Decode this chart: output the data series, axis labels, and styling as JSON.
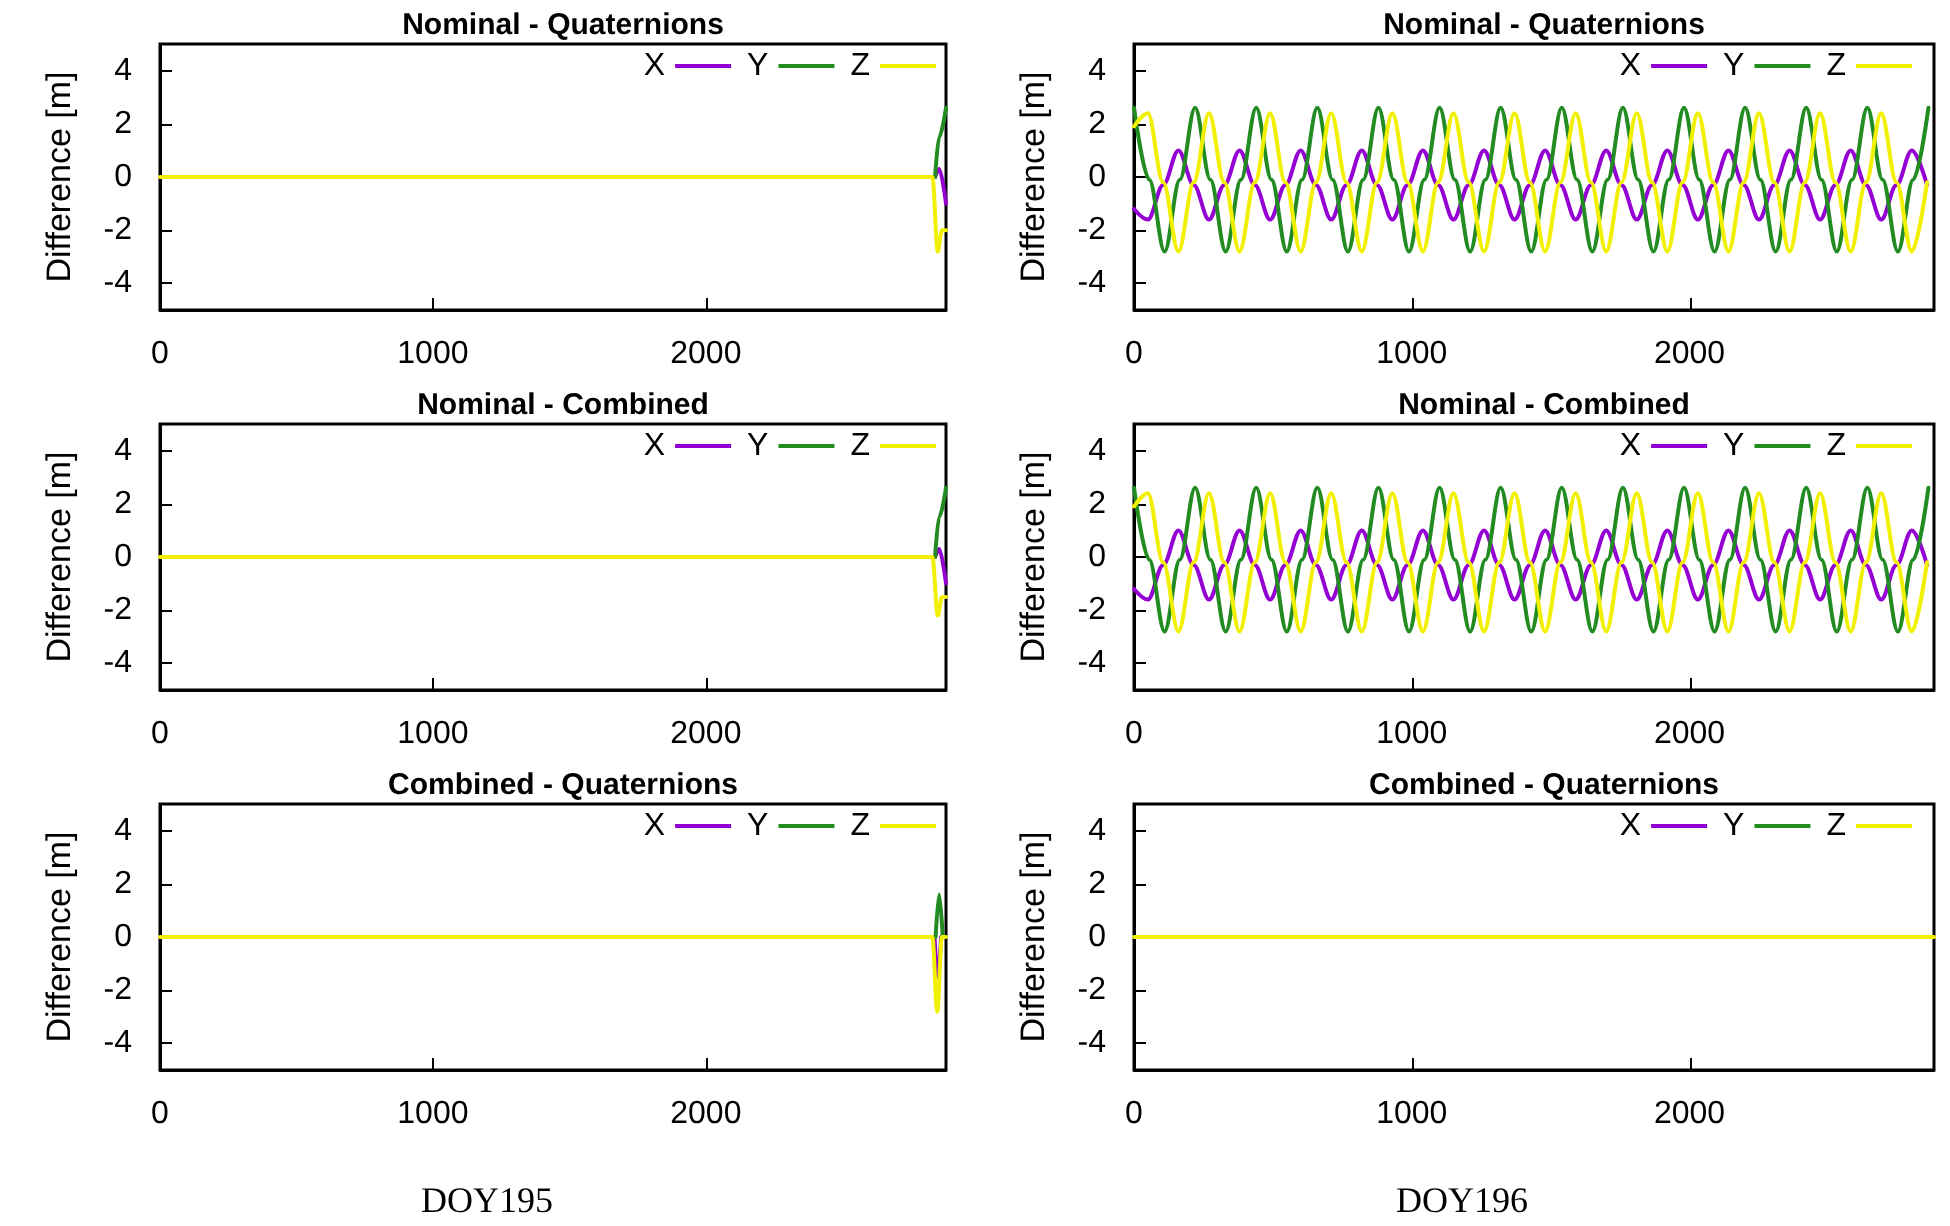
{
  "chart_data": [
    {
      "type": "line",
      "title": "Nominal - Quaternions",
      "ylabel": "Difference [m]",
      "xlim": [
        0,
        2880
      ],
      "xticks": [
        0,
        1000,
        2000
      ],
      "ylim": [
        -5,
        5
      ],
      "yticks": [
        -4,
        -2,
        0,
        2,
        4
      ],
      "grid": false,
      "legend": "top right",
      "marker": "none",
      "line_style": "solid",
      "series": [
        {
          "name": "X",
          "color": "#9400d3",
          "x": [
            2840,
            2855,
            2880
          ],
          "values": [
            0,
            0.3,
            -1.0
          ]
        },
        {
          "name": "Y",
          "color": "#228b22",
          "x": [
            2840,
            2855,
            2880
          ],
          "values": [
            0,
            1.5,
            2.6
          ]
        },
        {
          "name": "Z",
          "color": "#f0f000",
          "x": [
            0,
            2830,
            2850,
            2865,
            2880
          ],
          "values": [
            0,
            0,
            -2.8,
            -2.0,
            -2.0
          ]
        }
      ]
    },
    {
      "type": "line",
      "title": "Nominal - Quaternions",
      "ylabel": "Difference [m]",
      "xlim": [
        0,
        2880
      ],
      "xticks": [
        0,
        1000,
        2000
      ],
      "ylim": [
        -5,
        5
      ],
      "yticks": [
        -4,
        -2,
        0,
        2,
        4
      ],
      "grid": false,
      "legend": "top right",
      "marker": "none",
      "line_style": "solid",
      "series": [
        {
          "name": "X",
          "color": "#9400d3",
          "x": [
            0,
            50,
            105,
            160,
            215,
            270,
            325,
            380,
            435,
            490,
            545,
            600,
            655,
            710,
            765,
            820,
            875,
            930,
            985,
            1040,
            1095,
            1150,
            1205,
            1260,
            1315,
            1370,
            1425,
            1480,
            1535,
            1590,
            1645,
            1700,
            1755,
            1810,
            1865,
            1920,
            1975,
            2030,
            2085,
            2140,
            2195,
            2250,
            2305,
            2360,
            2415,
            2470,
            2525,
            2580,
            2635,
            2690,
            2745,
            2800,
            2855
          ],
          "values": [
            -1.2,
            -1.6,
            -0.3,
            1.0,
            -0.3,
            -1.6,
            -0.3,
            1.0,
            -0.3,
            -1.6,
            -0.3,
            1.0,
            -0.3,
            -1.6,
            -0.3,
            1.0,
            -0.3,
            -1.6,
            -0.3,
            1.0,
            -0.3,
            -1.6,
            -0.3,
            1.0,
            -0.3,
            -1.6,
            -0.3,
            1.0,
            -0.3,
            -1.6,
            -0.3,
            1.0,
            -0.3,
            -1.6,
            -0.3,
            1.0,
            -0.3,
            -1.6,
            -0.3,
            1.0,
            -0.3,
            -1.6,
            -0.3,
            1.0,
            -0.3,
            -1.6,
            -0.3,
            1.0,
            -0.3,
            -1.6,
            -0.3,
            1.0,
            -0.3
          ]
        },
        {
          "name": "Y",
          "color": "#228b22",
          "x": [
            0,
            55,
            110,
            165,
            220,
            275,
            330,
            385,
            440,
            495,
            550,
            605,
            660,
            715,
            770,
            825,
            880,
            935,
            990,
            1045,
            1100,
            1155,
            1210,
            1265,
            1320,
            1375,
            1430,
            1485,
            1540,
            1595,
            1650,
            1705,
            1760,
            1815,
            1870,
            1925,
            1980,
            2035,
            2090,
            2145,
            2200,
            2255,
            2310,
            2365,
            2420,
            2475,
            2530,
            2585,
            2640,
            2695,
            2750,
            2805,
            2860
          ],
          "values": [
            2.6,
            -0.1,
            -2.8,
            -0.1,
            2.6,
            -0.1,
            -2.8,
            -0.1,
            2.6,
            -0.1,
            -2.8,
            -0.1,
            2.6,
            -0.1,
            -2.8,
            -0.1,
            2.6,
            -0.1,
            -2.8,
            -0.1,
            2.6,
            -0.1,
            -2.8,
            -0.1,
            2.6,
            -0.1,
            -2.8,
            -0.1,
            2.6,
            -0.1,
            -2.8,
            -0.1,
            2.6,
            -0.1,
            -2.8,
            -0.1,
            2.6,
            -0.1,
            -2.8,
            -0.1,
            2.6,
            -0.1,
            -2.8,
            -0.1,
            2.6,
            -0.1,
            -2.8,
            -0.1,
            2.6,
            -0.1,
            -2.8,
            -0.1,
            2.6
          ]
        },
        {
          "name": "Z",
          "color": "#f0f000",
          "x": [
            0,
            50,
            105,
            160,
            215,
            270,
            325,
            380,
            435,
            490,
            545,
            600,
            655,
            710,
            765,
            820,
            875,
            930,
            985,
            1040,
            1095,
            1150,
            1205,
            1260,
            1315,
            1370,
            1425,
            1480,
            1535,
            1590,
            1645,
            1700,
            1755,
            1810,
            1865,
            1920,
            1975,
            2030,
            2085,
            2140,
            2195,
            2250,
            2305,
            2360,
            2415,
            2470,
            2525,
            2580,
            2635,
            2690,
            2745,
            2800,
            2855
          ],
          "values": [
            1.9,
            2.4,
            -0.2,
            -2.8,
            -0.2,
            2.4,
            -0.2,
            -2.8,
            -0.2,
            2.4,
            -0.2,
            -2.8,
            -0.2,
            2.4,
            -0.2,
            -2.8,
            -0.2,
            2.4,
            -0.2,
            -2.8,
            -0.2,
            2.4,
            -0.2,
            -2.8,
            -0.2,
            2.4,
            -0.2,
            -2.8,
            -0.2,
            2.4,
            -0.2,
            -2.8,
            -0.2,
            2.4,
            -0.2,
            -2.8,
            -0.2,
            2.4,
            -0.2,
            -2.8,
            -0.2,
            2.4,
            -0.2,
            -2.8,
            -0.2,
            2.4,
            -0.2,
            -2.8,
            -0.2,
            2.4,
            -0.2,
            -2.8,
            -0.2
          ]
        }
      ]
    },
    {
      "type": "line",
      "title": "Nominal - Combined",
      "ylabel": "Difference [m]",
      "xlim": [
        0,
        2880
      ],
      "xticks": [
        0,
        1000,
        2000
      ],
      "ylim": [
        -5,
        5
      ],
      "yticks": [
        -4,
        -2,
        0,
        2,
        4
      ],
      "grid": false,
      "legend": "top right",
      "marker": "none",
      "line_style": "solid",
      "series": [
        {
          "name": "X",
          "color": "#9400d3",
          "x": [
            2840,
            2855,
            2880
          ],
          "values": [
            0,
            0.3,
            -1.0
          ]
        },
        {
          "name": "Y",
          "color": "#228b22",
          "x": [
            2840,
            2855,
            2880
          ],
          "values": [
            0,
            1.5,
            2.6
          ]
        },
        {
          "name": "Z",
          "color": "#f0f000",
          "x": [
            0,
            2830,
            2850,
            2865,
            2880
          ],
          "values": [
            0,
            0,
            -2.2,
            -1.5,
            -1.5
          ]
        }
      ]
    },
    {
      "type": "line",
      "title": "Nominal - Combined",
      "ylabel": "Difference [m]",
      "xlim": [
        0,
        2880
      ],
      "xticks": [
        0,
        1000,
        2000
      ],
      "ylim": [
        -5,
        5
      ],
      "yticks": [
        -4,
        -2,
        0,
        2,
        4
      ],
      "grid": false,
      "legend": "top right",
      "marker": "none",
      "line_style": "solid",
      "series": [
        {
          "name": "X",
          "color": "#9400d3",
          "x": [
            0,
            50,
            105,
            160,
            215,
            270,
            325,
            380,
            435,
            490,
            545,
            600,
            655,
            710,
            765,
            820,
            875,
            930,
            985,
            1040,
            1095,
            1150,
            1205,
            1260,
            1315,
            1370,
            1425,
            1480,
            1535,
            1590,
            1645,
            1700,
            1755,
            1810,
            1865,
            1920,
            1975,
            2030,
            2085,
            2140,
            2195,
            2250,
            2305,
            2360,
            2415,
            2470,
            2525,
            2580,
            2635,
            2690,
            2745,
            2800,
            2855
          ],
          "values": [
            -1.2,
            -1.6,
            -0.3,
            1.0,
            -0.3,
            -1.6,
            -0.3,
            1.0,
            -0.3,
            -1.6,
            -0.3,
            1.0,
            -0.3,
            -1.6,
            -0.3,
            1.0,
            -0.3,
            -1.6,
            -0.3,
            1.0,
            -0.3,
            -1.6,
            -0.3,
            1.0,
            -0.3,
            -1.6,
            -0.3,
            1.0,
            -0.3,
            -1.6,
            -0.3,
            1.0,
            -0.3,
            -1.6,
            -0.3,
            1.0,
            -0.3,
            -1.6,
            -0.3,
            1.0,
            -0.3,
            -1.6,
            -0.3,
            1.0,
            -0.3,
            -1.6,
            -0.3,
            1.0,
            -0.3,
            -1.6,
            -0.3,
            1.0,
            -0.3
          ]
        },
        {
          "name": "Y",
          "color": "#228b22",
          "x": [
            0,
            55,
            110,
            165,
            220,
            275,
            330,
            385,
            440,
            495,
            550,
            605,
            660,
            715,
            770,
            825,
            880,
            935,
            990,
            1045,
            1100,
            1155,
            1210,
            1265,
            1320,
            1375,
            1430,
            1485,
            1540,
            1595,
            1650,
            1705,
            1760,
            1815,
            1870,
            1925,
            1980,
            2035,
            2090,
            2145,
            2200,
            2255,
            2310,
            2365,
            2420,
            2475,
            2530,
            2585,
            2640,
            2695,
            2750,
            2805,
            2860
          ],
          "values": [
            2.6,
            -0.1,
            -2.8,
            -0.1,
            2.6,
            -0.1,
            -2.8,
            -0.1,
            2.6,
            -0.1,
            -2.8,
            -0.1,
            2.6,
            -0.1,
            -2.8,
            -0.1,
            2.6,
            -0.1,
            -2.8,
            -0.1,
            2.6,
            -0.1,
            -2.8,
            -0.1,
            2.6,
            -0.1,
            -2.8,
            -0.1,
            2.6,
            -0.1,
            -2.8,
            -0.1,
            2.6,
            -0.1,
            -2.8,
            -0.1,
            2.6,
            -0.1,
            -2.8,
            -0.1,
            2.6,
            -0.1,
            -2.8,
            -0.1,
            2.6,
            -0.1,
            -2.8,
            -0.1,
            2.6,
            -0.1,
            -2.8,
            -0.1,
            2.6
          ]
        },
        {
          "name": "Z",
          "color": "#f0f000",
          "x": [
            0,
            50,
            105,
            160,
            215,
            270,
            325,
            380,
            435,
            490,
            545,
            600,
            655,
            710,
            765,
            820,
            875,
            930,
            985,
            1040,
            1095,
            1150,
            1205,
            1260,
            1315,
            1370,
            1425,
            1480,
            1535,
            1590,
            1645,
            1700,
            1755,
            1810,
            1865,
            1920,
            1975,
            2030,
            2085,
            2140,
            2195,
            2250,
            2305,
            2360,
            2415,
            2470,
            2525,
            2580,
            2635,
            2690,
            2745,
            2800,
            2855
          ],
          "values": [
            1.9,
            2.4,
            -0.2,
            -2.8,
            -0.2,
            2.4,
            -0.2,
            -2.8,
            -0.2,
            2.4,
            -0.2,
            -2.8,
            -0.2,
            2.4,
            -0.2,
            -2.8,
            -0.2,
            2.4,
            -0.2,
            -2.8,
            -0.2,
            2.4,
            -0.2,
            -2.8,
            -0.2,
            2.4,
            -0.2,
            -2.8,
            -0.2,
            2.4,
            -0.2,
            -2.8,
            -0.2,
            2.4,
            -0.2,
            -2.8,
            -0.2,
            2.4,
            -0.2,
            -2.8,
            -0.2,
            2.4,
            -0.2,
            -2.8,
            -0.2,
            2.4,
            -0.2,
            -2.8,
            -0.2,
            2.4,
            -0.2,
            -2.8,
            -0.2
          ]
        }
      ]
    },
    {
      "type": "line",
      "title": "Combined - Quaternions",
      "ylabel": "Difference [m]",
      "annotations": [
        "DOY195"
      ],
      "xlim": [
        0,
        2880
      ],
      "xticks": [
        0,
        1000,
        2000
      ],
      "ylim": [
        -5,
        5
      ],
      "yticks": [
        -4,
        -2,
        0,
        2,
        4
      ],
      "grid": false,
      "legend": "top right",
      "marker": "none",
      "line_style": "solid",
      "series": [
        {
          "name": "X",
          "color": "#9400d3",
          "x": [
            2838,
            2850,
            2862
          ],
          "values": [
            0,
            -1.5,
            0
          ]
        },
        {
          "name": "Y",
          "color": "#228b22",
          "x": [
            2842,
            2855,
            2868
          ],
          "values": [
            0,
            1.6,
            0
          ]
        },
        {
          "name": "Z",
          "color": "#f0f000",
          "x": [
            0,
            2830,
            2848,
            2865,
            2880
          ],
          "values": [
            0,
            0,
            -2.8,
            0,
            0
          ]
        }
      ]
    },
    {
      "type": "line",
      "title": "Combined - Quaternions",
      "ylabel": "Difference [m]",
      "annotations": [
        "DOY196"
      ],
      "xlim": [
        0,
        2880
      ],
      "xticks": [
        0,
        1000,
        2000
      ],
      "ylim": [
        -5,
        5
      ],
      "yticks": [
        -4,
        -2,
        0,
        2,
        4
      ],
      "grid": false,
      "legend": "top right",
      "marker": "none",
      "line_style": "solid",
      "series": [
        {
          "name": "X",
          "color": "#9400d3"
        },
        {
          "name": "Y",
          "color": "#228b22"
        },
        {
          "name": "Z",
          "color": "#f0f000",
          "x": [
            0,
            2880
          ],
          "values": [
            0,
            0
          ]
        }
      ]
    }
  ]
}
